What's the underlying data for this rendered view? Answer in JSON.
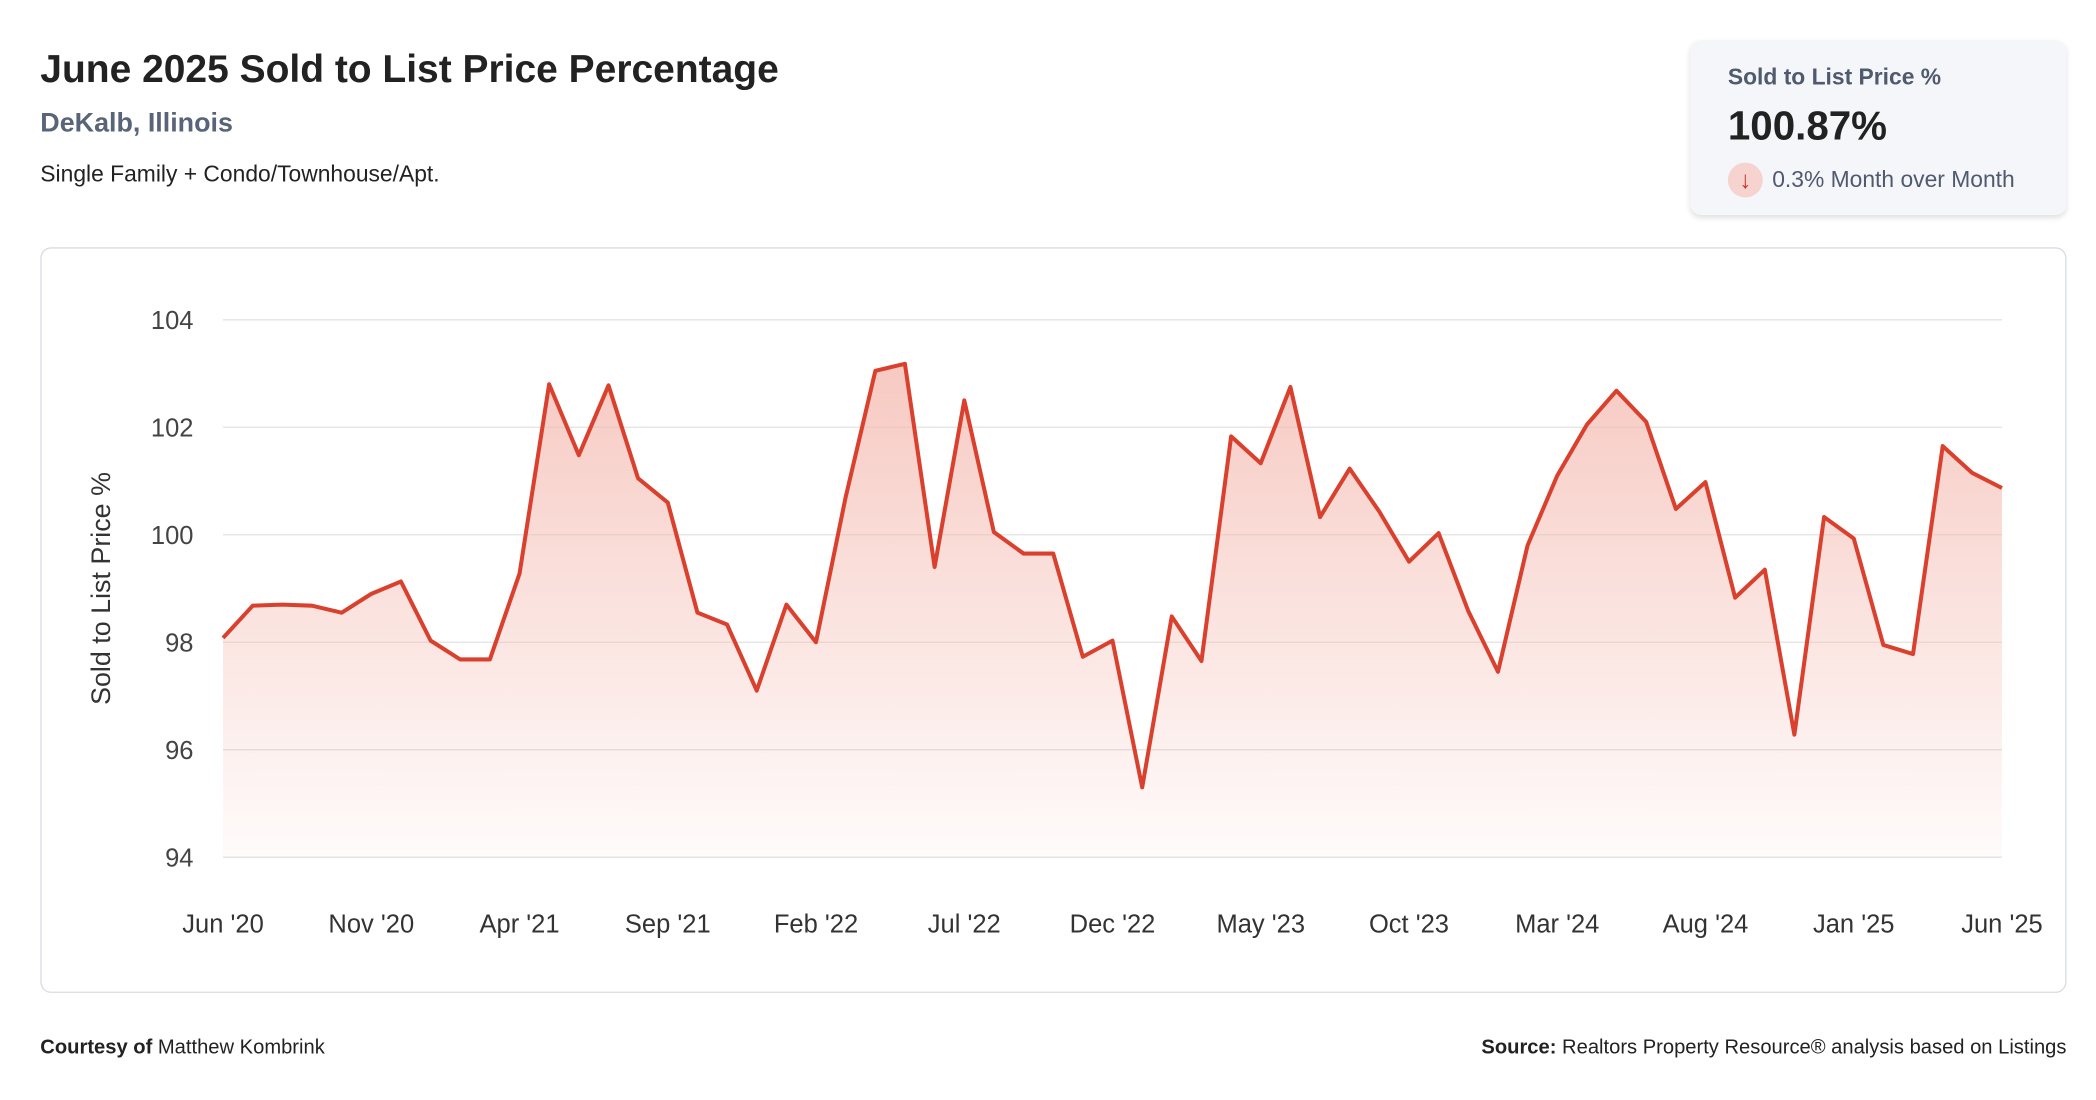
{
  "header": {
    "title": "June 2025 Sold to List Price Percentage",
    "location": "DeKalb, Illinois",
    "subtitle": "Single Family + Condo/Townhouse/Apt."
  },
  "kpi": {
    "label": "Sold to List Price %",
    "value": "100.87%",
    "change": "0.3% Month over Month",
    "direction": "down",
    "direction_icon": "arrow-down-icon"
  },
  "footer": {
    "courtesy_label": "Courtesy of",
    "courtesy_name": "Matthew Kombrink",
    "source_label": "Source:",
    "source_text": "Realtors Property Resource® analysis based on Listings"
  },
  "chart_data": {
    "type": "area",
    "ylabel": "Sold to List Price %",
    "ylim": [
      94,
      104
    ],
    "yticks": [
      94,
      96,
      98,
      100,
      102,
      104
    ],
    "xtick_labels": [
      "Jun '20",
      "Nov '20",
      "Apr '21",
      "Sep '21",
      "Feb '22",
      "Jul '22",
      "Dec '22",
      "May '23",
      "Oct '23",
      "Mar '24",
      "Aug '24",
      "Jan '25",
      "Jun '25"
    ],
    "grid": true,
    "line_color": "#d9412e",
    "fill_color": "#f4b8ae",
    "x": [
      "2020-06",
      "2020-07",
      "2020-08",
      "2020-09",
      "2020-10",
      "2020-11",
      "2020-12",
      "2021-01",
      "2021-02",
      "2021-03",
      "2021-04",
      "2021-05",
      "2021-06",
      "2021-07",
      "2021-08",
      "2021-09",
      "2021-10",
      "2021-11",
      "2021-12",
      "2022-01",
      "2022-02",
      "2022-03",
      "2022-04",
      "2022-05",
      "2022-06",
      "2022-07",
      "2022-08",
      "2022-09",
      "2022-10",
      "2022-11",
      "2022-12",
      "2023-01",
      "2023-02",
      "2023-03",
      "2023-04",
      "2023-05",
      "2023-06",
      "2023-07",
      "2023-08",
      "2023-09",
      "2023-10",
      "2023-11",
      "2023-12",
      "2024-01",
      "2024-02",
      "2024-03",
      "2024-04",
      "2024-05",
      "2024-06",
      "2024-07",
      "2024-08",
      "2024-09",
      "2024-10",
      "2024-11",
      "2024-12",
      "2025-01",
      "2025-02",
      "2025-03",
      "2025-04",
      "2025-05",
      "2025-06"
    ],
    "values": [
      98.08,
      98.68,
      98.7,
      98.68,
      98.55,
      98.9,
      99.13,
      98.03,
      97.68,
      97.68,
      99.28,
      102.8,
      101.48,
      102.78,
      101.05,
      100.6,
      98.55,
      98.33,
      97.1,
      98.7,
      98.0,
      100.7,
      103.05,
      103.18,
      99.4,
      102.5,
      100.05,
      99.65,
      99.65,
      97.73,
      98.03,
      95.3,
      98.48,
      97.65,
      101.83,
      101.33,
      102.75,
      100.33,
      101.23,
      100.43,
      99.5,
      100.03,
      98.58,
      97.45,
      99.8,
      101.1,
      102.05,
      102.68,
      102.1,
      100.48,
      100.98,
      98.83,
      99.35,
      96.28,
      100.33,
      99.93,
      97.95,
      97.78,
      101.65,
      101.15,
      100.87
    ]
  }
}
